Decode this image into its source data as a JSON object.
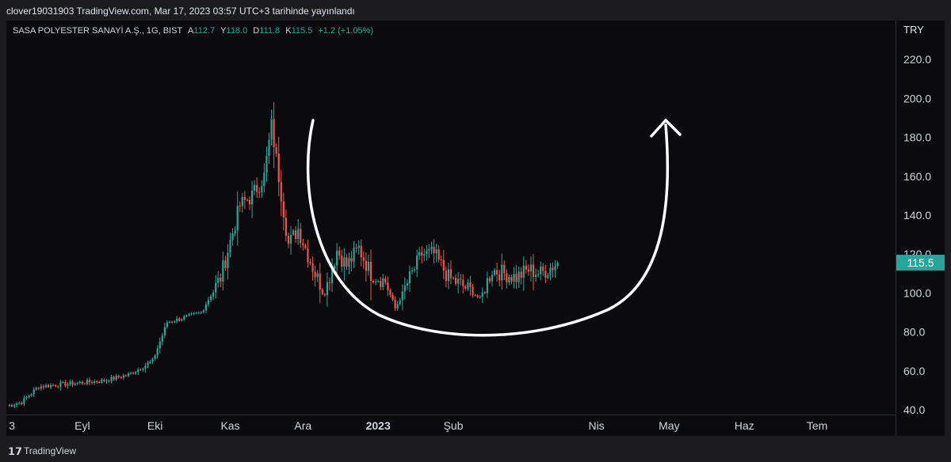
{
  "header": {
    "publish_line": "clover19031903 TradingView.com, Mar 17, 2023 03:57 UTC+3 tarihinde yayınlandı"
  },
  "legend": {
    "symbol": "SASA POLYESTER SANAYİ A.Ş., 1G, BIST",
    "open_label": "A",
    "open_value": "112.7",
    "high_label": "Y",
    "high_value": "118.0",
    "low_label": "D",
    "low_value": "111.8",
    "close_label": "K",
    "close_value": "115.5",
    "change": "+1.2 (+1.05%)"
  },
  "y_axis": {
    "currency": "TRY",
    "last_price_tag": "115.5"
  },
  "footer": {
    "brand": "TradingView"
  },
  "colors": {
    "up": "#26a69a",
    "down": "#ef5350",
    "background": "#0b0b0d",
    "annotation": "#ffffff"
  },
  "chart_data": {
    "type": "candlestick",
    "ylim": [
      40,
      225
    ],
    "y_ticks": [
      "40.0",
      "60.0",
      "80.0",
      "100.0",
      "120.0",
      "140.0",
      "160.0",
      "180.0",
      "200.0",
      "220.0"
    ],
    "x_ticks": [
      "3",
      "Eyl",
      "Eki",
      "Kas",
      "Ara",
      "2023",
      "Şub",
      "Nis",
      "May",
      "Haz",
      "Tem"
    ],
    "x_tick_days": [
      2,
      31,
      61,
      92,
      122,
      153,
      184,
      243,
      273,
      304,
      334
    ],
    "last_price": 115.5,
    "key_closes": [
      {
        "day": 0,
        "close": 42
      },
      {
        "day": 6,
        "close": 44
      },
      {
        "day": 13,
        "close": 52
      },
      {
        "day": 40,
        "close": 55
      },
      {
        "day": 50,
        "close": 58
      },
      {
        "day": 60,
        "close": 65
      },
      {
        "day": 66,
        "close": 85
      },
      {
        "day": 75,
        "close": 88
      },
      {
        "day": 80,
        "close": 90
      },
      {
        "day": 88,
        "close": 108
      },
      {
        "day": 96,
        "close": 145
      },
      {
        "day": 101,
        "close": 150
      },
      {
        "day": 106,
        "close": 160
      },
      {
        "day": 109,
        "close": 186
      },
      {
        "day": 112,
        "close": 160
      },
      {
        "day": 116,
        "close": 125
      },
      {
        "day": 120,
        "close": 133
      },
      {
        "day": 127,
        "close": 110
      },
      {
        "day": 131,
        "close": 100
      },
      {
        "day": 136,
        "close": 122
      },
      {
        "day": 140,
        "close": 114
      },
      {
        "day": 145,
        "close": 123
      },
      {
        "day": 150,
        "close": 110
      },
      {
        "day": 156,
        "close": 106
      },
      {
        "day": 160,
        "close": 92
      },
      {
        "day": 165,
        "close": 105
      },
      {
        "day": 171,
        "close": 120
      },
      {
        "day": 176,
        "close": 120
      },
      {
        "day": 182,
        "close": 108
      },
      {
        "day": 190,
        "close": 102
      },
      {
        "day": 195,
        "close": 97
      },
      {
        "day": 200,
        "close": 112
      },
      {
        "day": 205,
        "close": 110
      },
      {
        "day": 210,
        "close": 108
      },
      {
        "day": 215,
        "close": 112
      },
      {
        "day": 220,
        "close": 110
      },
      {
        "day": 227,
        "close": 115.5
      }
    ],
    "annotation": "hand-drawn cup-shaped arrow from the peak, down under the range and up with an arrowhead"
  }
}
